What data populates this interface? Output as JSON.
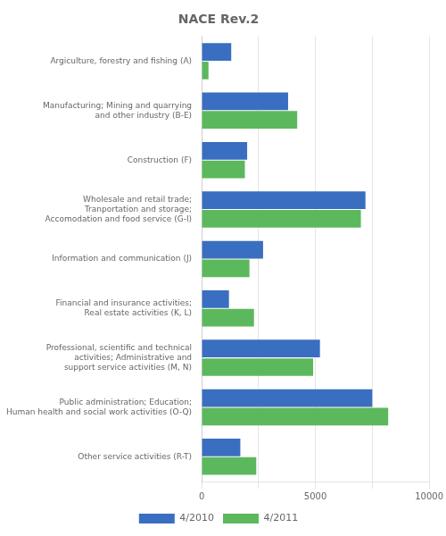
{
  "chart_data": {
    "type": "bar",
    "orientation": "horizontal",
    "title": "NACE Rev.2",
    "categories": [
      "Argiculture, forestry and fishing (A)",
      "Manufacturing; Mining and quarrying\nand other industry (B-E)",
      "Construction (F)",
      "Wholesale and retail trade;\nTranportation and storage;\nAccomodation and food service (G-I)",
      "Information and communication (J)",
      "Financial and insurance activities;\nReal estate activities (K, L)",
      "Professional, scientific and technical\nactivities; Administrative and\nsupport service activities (M, N)",
      "Public administration; Education;\nHuman health and social work activities (O-Q)",
      "Other service activities (R-T)"
    ],
    "series": [
      {
        "name": "4/2010",
        "color": "#3A6EC0",
        "values": [
          1300,
          3800,
          2000,
          7200,
          2700,
          1200,
          5200,
          7500,
          1700
        ]
      },
      {
        "name": "4/2011",
        "color": "#5CB85C",
        "values": [
          300,
          4200,
          1900,
          7000,
          2100,
          2300,
          4900,
          8200,
          2400
        ]
      }
    ],
    "xlim": [
      0,
      10000
    ],
    "xticks": [
      0,
      {
        "value": 2500,
        "label": ""
      },
      5000,
      {
        "value": 7500,
        "label": ""
      },
      10000
    ],
    "grid": true,
    "legend": "bottom"
  }
}
